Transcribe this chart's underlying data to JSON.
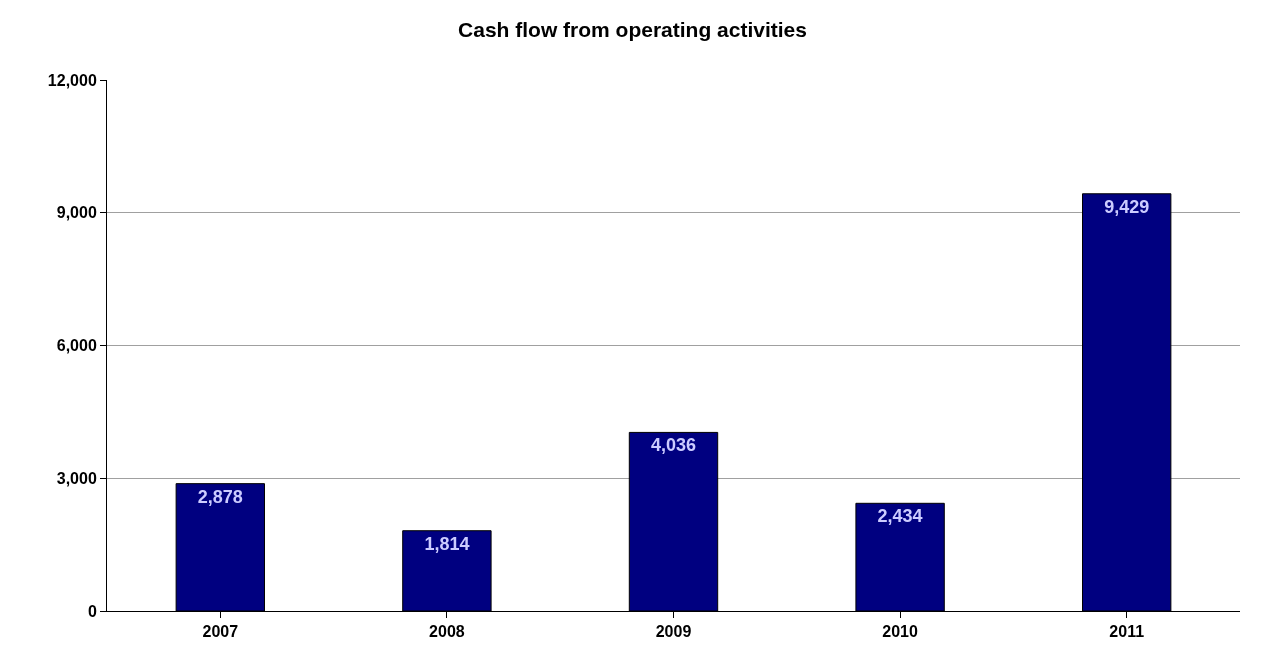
{
  "chart_data": {
    "type": "bar",
    "title": "Cash flow from operating activities",
    "categories": [
      "2007",
      "2008",
      "2009",
      "2010",
      "2011"
    ],
    "values": [
      2878,
      1814,
      4036,
      2434,
      9429
    ],
    "color": "#000080",
    "ylim": [
      0,
      12000
    ],
    "yticks": [
      {
        "value": 0,
        "label": "0"
      },
      {
        "value": 3000,
        "label": "3,000"
      },
      {
        "value": 6000,
        "label": "6,000"
      },
      {
        "value": 9000,
        "label": "9,000"
      },
      {
        "value": 12000,
        "label": "12,000"
      }
    ],
    "value_labels": [
      "2,878",
      "1,814",
      "4,036",
      "2,434",
      "9,429"
    ],
    "grid": "y"
  }
}
